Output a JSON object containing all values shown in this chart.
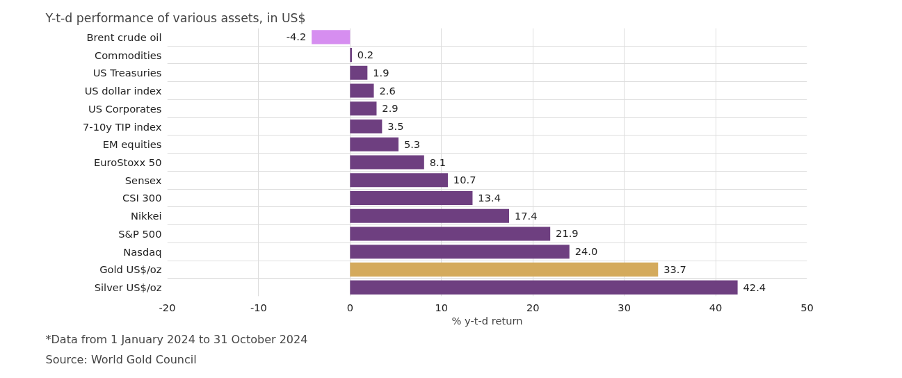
{
  "chart_data": {
    "type": "bar",
    "orientation": "horizontal",
    "title": "Y-t-d performance of various assets, in US$",
    "xlabel": "% y-t-d return",
    "categories": [
      "Brent crude oil",
      "Commodities",
      "US Treasuries",
      "US dollar index",
      "US Corporates",
      "7-10y TIP index",
      "EM equities",
      "EuroStoxx 50",
      "Sensex",
      "CSI 300",
      "Nikkei",
      "S&P 500",
      "Nasdaq",
      "Gold US$/oz",
      "Silver US$/oz"
    ],
    "values": [
      -4.2,
      0.2,
      1.9,
      2.6,
      2.9,
      3.5,
      5.3,
      8.1,
      10.7,
      13.4,
      17.4,
      21.9,
      24.0,
      33.7,
      42.4
    ],
    "value_labels": [
      "-4.2",
      "0.2",
      "1.9",
      "2.6",
      "2.9",
      "3.5",
      "5.3",
      "8.1",
      "10.7",
      "13.4",
      "17.4",
      "21.9",
      "24.0",
      "33.7",
      "42.4"
    ],
    "colors": [
      "#d68ef0",
      "#6e3f80",
      "#6e3f80",
      "#6e3f80",
      "#6e3f80",
      "#6e3f80",
      "#6e3f80",
      "#6e3f80",
      "#6e3f80",
      "#6e3f80",
      "#6e3f80",
      "#6e3f80",
      "#6e3f80",
      "#d4aa5c",
      "#6e3f80"
    ],
    "xlim": [
      -20,
      50
    ],
    "xticks": [
      -20,
      -10,
      0,
      10,
      20,
      30,
      40,
      50
    ],
    "grid": true,
    "annotations": [
      "*Data from 1 January 2024 to 31 October 2024",
      "Source: World Gold Council"
    ]
  }
}
